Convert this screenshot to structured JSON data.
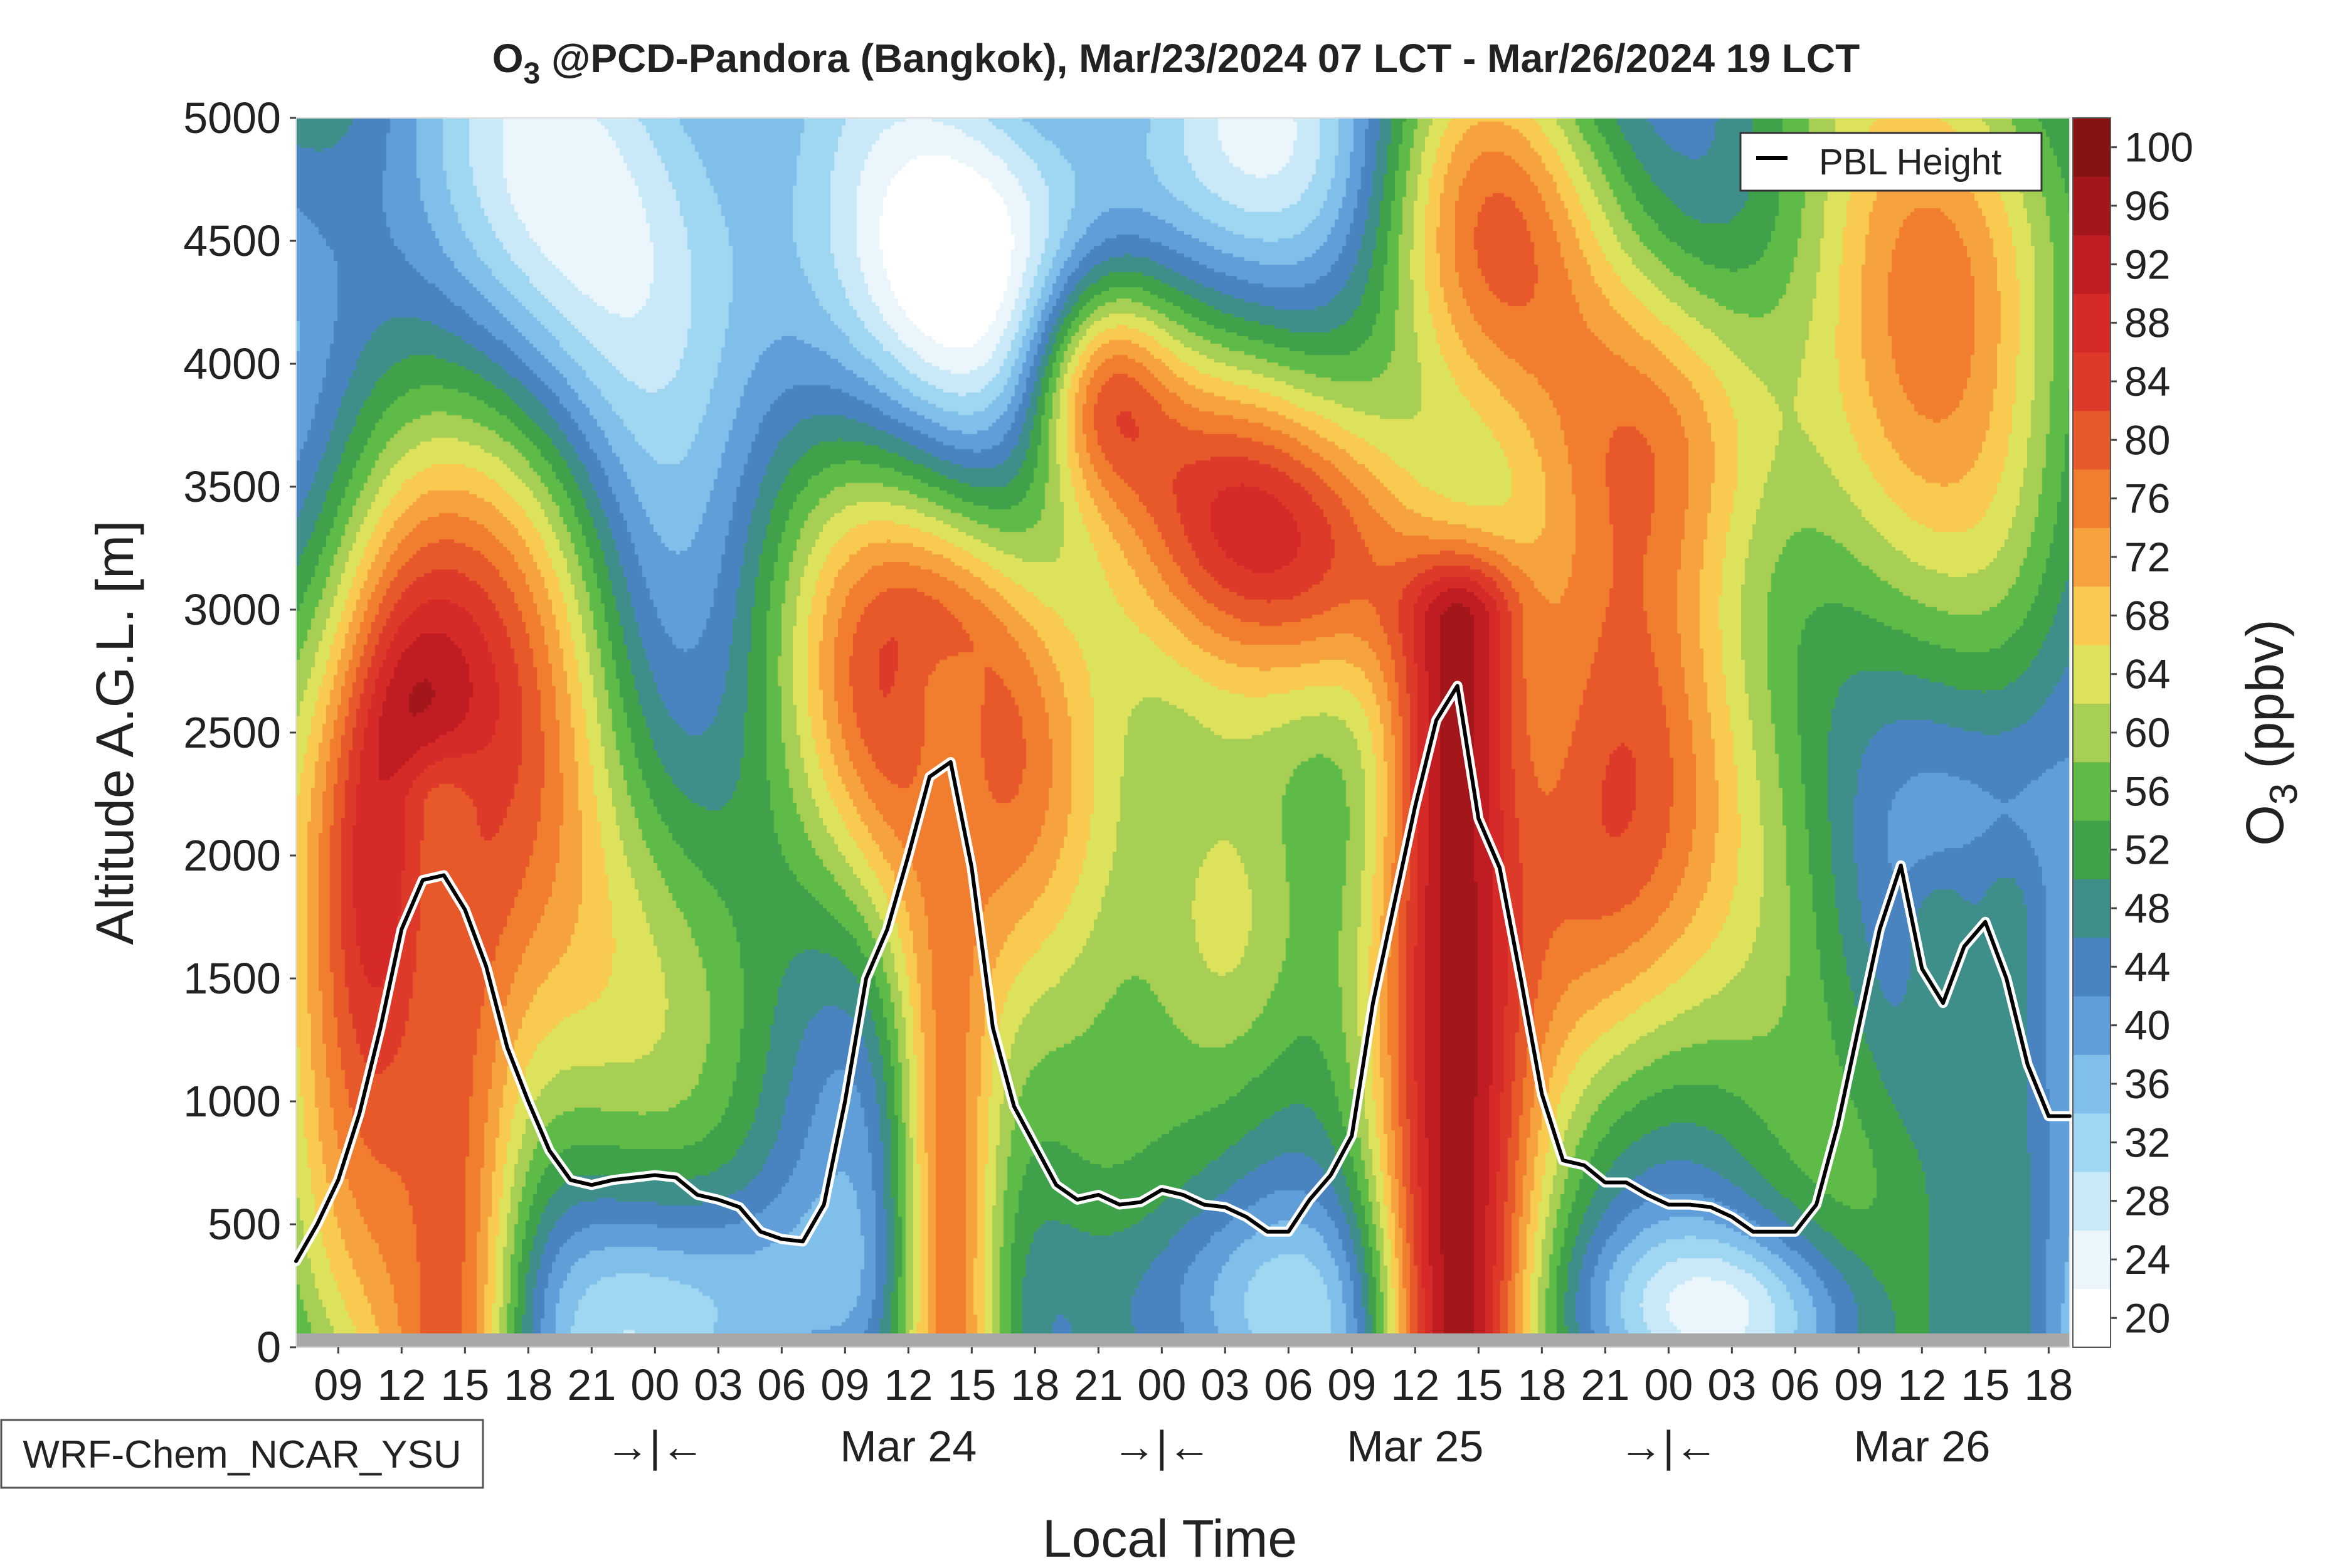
{
  "chart_data": {
    "type": "heatmap",
    "title": {
      "species": "O",
      "species_sub": "3",
      "rest": " @PCD-Pandora (Bangkok), Mar/23/2024 07 LCT - Mar/26/2024 19 LCT"
    },
    "xlabel": "Local Time",
    "ylabel": "Altitude A.G.L. [m]",
    "ylim": [
      0,
      5000
    ],
    "yticks": [
      "0",
      "500",
      "1000",
      "1500",
      "2000",
      "2500",
      "3000",
      "3500",
      "4000",
      "4500",
      "5000"
    ],
    "xlim_hours": [
      0,
      84
    ],
    "xtick_hours": [
      2,
      5,
      8,
      11,
      14,
      17,
      20,
      23,
      26,
      29,
      32,
      35,
      38,
      41,
      44,
      47,
      50,
      53,
      56,
      59,
      62,
      65,
      68,
      71,
      74,
      77,
      80,
      83
    ],
    "xtick_labels": [
      "09",
      "12",
      "15",
      "18",
      "21",
      "00",
      "03",
      "06",
      "09",
      "12",
      "15",
      "18",
      "21",
      "00",
      "03",
      "06",
      "09",
      "12",
      "15",
      "18",
      "21",
      "00",
      "03",
      "06",
      "09",
      "12",
      "15",
      "18"
    ],
    "day_labels": [
      {
        "text": "Mar 24",
        "hour": 29
      },
      {
        "text": "Mar 25",
        "hour": 53
      },
      {
        "text": "Mar 26",
        "hour": 77
      }
    ],
    "midnight_markers": [
      {
        "text": "→|←",
        "hour": 17
      },
      {
        "text": "→|←",
        "hour": 41
      },
      {
        "text": "→|←",
        "hour": 65
      }
    ],
    "model_label": "WRF-Chem_NCAR_YSU",
    "legend": {
      "label": "PBL Height",
      "position": "top-right"
    },
    "pbl_height": {
      "hours": [
        0,
        1,
        2,
        3,
        4,
        5,
        6,
        7,
        8,
        9,
        10,
        11,
        12,
        13,
        14,
        15,
        16,
        17,
        18,
        19,
        20,
        21,
        22,
        23,
        24,
        25,
        26,
        27,
        28,
        29,
        30,
        31,
        32,
        33,
        34,
        35,
        36,
        37,
        38,
        39,
        40,
        41,
        42,
        43,
        44,
        45,
        46,
        47,
        48,
        49,
        50,
        51,
        52,
        53,
        54,
        55,
        56,
        57,
        58,
        59,
        60,
        61,
        62,
        63,
        64,
        65,
        66,
        67,
        68,
        69,
        70,
        71,
        72,
        73,
        74,
        75,
        76,
        77,
        78,
        79,
        80,
        81,
        82,
        83,
        84
      ],
      "values": [
        350,
        500,
        680,
        950,
        1300,
        1700,
        1900,
        1920,
        1780,
        1550,
        1220,
        1000,
        800,
        680,
        660,
        680,
        690,
        700,
        690,
        620,
        600,
        570,
        470,
        440,
        430,
        580,
        1000,
        1500,
        1700,
        2000,
        2320,
        2380,
        1950,
        1300,
        980,
        820,
        660,
        600,
        620,
        580,
        590,
        640,
        620,
        580,
        570,
        530,
        470,
        470,
        600,
        700,
        860,
        1400,
        1800,
        2200,
        2550,
        2690,
        2150,
        1950,
        1500,
        1030,
        760,
        740,
        670,
        670,
        620,
        580,
        580,
        570,
        530,
        470,
        470,
        470,
        580,
        900,
        1300,
        1700,
        1960,
        1540,
        1400,
        1630,
        1730,
        1500,
        1150,
        940,
        940
      ]
    },
    "colorbar": {
      "label": "O",
      "label_sub": "3",
      "label_rest": " (ppbv)",
      "ticks": [
        20,
        24,
        28,
        32,
        36,
        40,
        44,
        48,
        52,
        56,
        60,
        64,
        68,
        72,
        76,
        80,
        84,
        88,
        92,
        96,
        100
      ],
      "colors": [
        "#ffffff",
        "#eaf6fc",
        "#c9e9f8",
        "#9fd6f2",
        "#80bfea",
        "#5f9ed8",
        "#4a84c0",
        "#3e8f8a",
        "#3fa24a",
        "#5fbb48",
        "#a7cf54",
        "#dde25c",
        "#f8ca4f",
        "#f6a23e",
        "#f17e2f",
        "#e7582b",
        "#de3a29",
        "#d62a28",
        "#c01d22",
        "#a3171b",
        "#871214"
      ]
    },
    "background_ppbv": 46,
    "features": [
      {
        "type": "blob",
        "hour": 3,
        "alt": 1700,
        "ppbv": 72,
        "sx": 3.5,
        "sy": 1100
      },
      {
        "type": "blob",
        "hour": 5,
        "alt": 2100,
        "ppbv": 76,
        "sx": 2.5,
        "sy": 800
      },
      {
        "type": "blob",
        "hour": 8,
        "alt": 2300,
        "ppbv": 70,
        "sx": 3,
        "sy": 900
      },
      {
        "type": "blob",
        "hour": 12,
        "alt": 2500,
        "ppbv": 64,
        "sx": 3,
        "sy": 1000
      },
      {
        "type": "blob",
        "hour": 30,
        "alt": 2700,
        "ppbv": 68,
        "sx": 5,
        "sy": 700
      },
      {
        "type": "blob",
        "hour": 26,
        "alt": 3000,
        "ppbv": 62,
        "sx": 5,
        "sy": 700
      },
      {
        "type": "blob",
        "hour": 37,
        "alt": 2100,
        "ppbv": 64,
        "sx": 4,
        "sy": 800
      },
      {
        "type": "blob",
        "hour": 44,
        "alt": 1700,
        "ppbv": 70,
        "sx": 3,
        "sy": 600
      },
      {
        "type": "blob",
        "hour": 38,
        "alt": 3900,
        "ppbv": 80,
        "sx": 2.5,
        "sy": 350
      },
      {
        "type": "blob",
        "hour": 44,
        "alt": 3400,
        "ppbv": 72,
        "sx": 4,
        "sy": 450
      },
      {
        "type": "blob",
        "hour": 51,
        "alt": 3200,
        "ppbv": 72,
        "sx": 4,
        "sy": 450
      },
      {
        "type": "blob",
        "hour": 56,
        "alt": 4600,
        "ppbv": 72,
        "sx": 4,
        "sy": 600
      },
      {
        "type": "blob",
        "hour": 61,
        "alt": 1800,
        "ppbv": 74,
        "sx": 4,
        "sy": 800
      },
      {
        "type": "blob",
        "hour": 62,
        "alt": 3000,
        "ppbv": 64,
        "sx": 4,
        "sy": 800
      },
      {
        "type": "blob",
        "hour": 66,
        "alt": 3800,
        "ppbv": 68,
        "sx": 4,
        "sy": 500
      },
      {
        "type": "blob",
        "hour": 75,
        "alt": 3800,
        "ppbv": 66,
        "sx": 5,
        "sy": 700
      },
      {
        "type": "blob",
        "hour": 80,
        "alt": 4700,
        "ppbv": 70,
        "sx": 5,
        "sy": 600
      },
      {
        "type": "blob",
        "hour": 17,
        "alt": 1400,
        "ppbv": 52,
        "sx": 6,
        "sy": 700
      },
      {
        "type": "blob",
        "hour": 70,
        "alt": 1200,
        "ppbv": 56,
        "sx": 5,
        "sy": 800
      },
      {
        "type": "blob",
        "hour": 17,
        "alt": 4400,
        "ppbv": 26,
        "sx": 8,
        "sy": 700
      },
      {
        "type": "blob",
        "hour": 31,
        "alt": 4400,
        "ppbv": 26,
        "sx": 5,
        "sy": 600
      },
      {
        "type": "blob",
        "hour": 44,
        "alt": 4900,
        "ppbv": 34,
        "sx": 6,
        "sy": 400
      },
      {
        "type": "blob",
        "hour": 68,
        "alt": 4900,
        "ppbv": 44,
        "sx": 5,
        "sy": 500
      },
      {
        "type": "blob",
        "hour": 20,
        "alt": 200,
        "ppbv": 34,
        "sx": 6,
        "sy": 300
      },
      {
        "type": "blob",
        "hour": 44,
        "alt": 200,
        "ppbv": 34,
        "sx": 6,
        "sy": 300
      },
      {
        "type": "blob",
        "hour": 68,
        "alt": 150,
        "ppbv": 26,
        "sx": 5,
        "sy": 250
      },
      {
        "type": "blob",
        "hour": 84,
        "alt": 1500,
        "ppbv": 40,
        "sx": 2,
        "sy": 1500
      },
      {
        "type": "plume",
        "hour": 7,
        "ppbv": 82,
        "sx": 2.3
      },
      {
        "type": "plume",
        "hour": 31,
        "ppbv": 78,
        "sx": 2.0
      },
      {
        "type": "plume",
        "hour": 55,
        "ppbv": 98,
        "sx": 2.6
      },
      {
        "type": "plume",
        "hour": 78,
        "ppbv": 52,
        "sx": 1.5
      },
      {
        "type": "plume",
        "hour": 81,
        "ppbv": 50,
        "sx": 1.5
      }
    ]
  }
}
